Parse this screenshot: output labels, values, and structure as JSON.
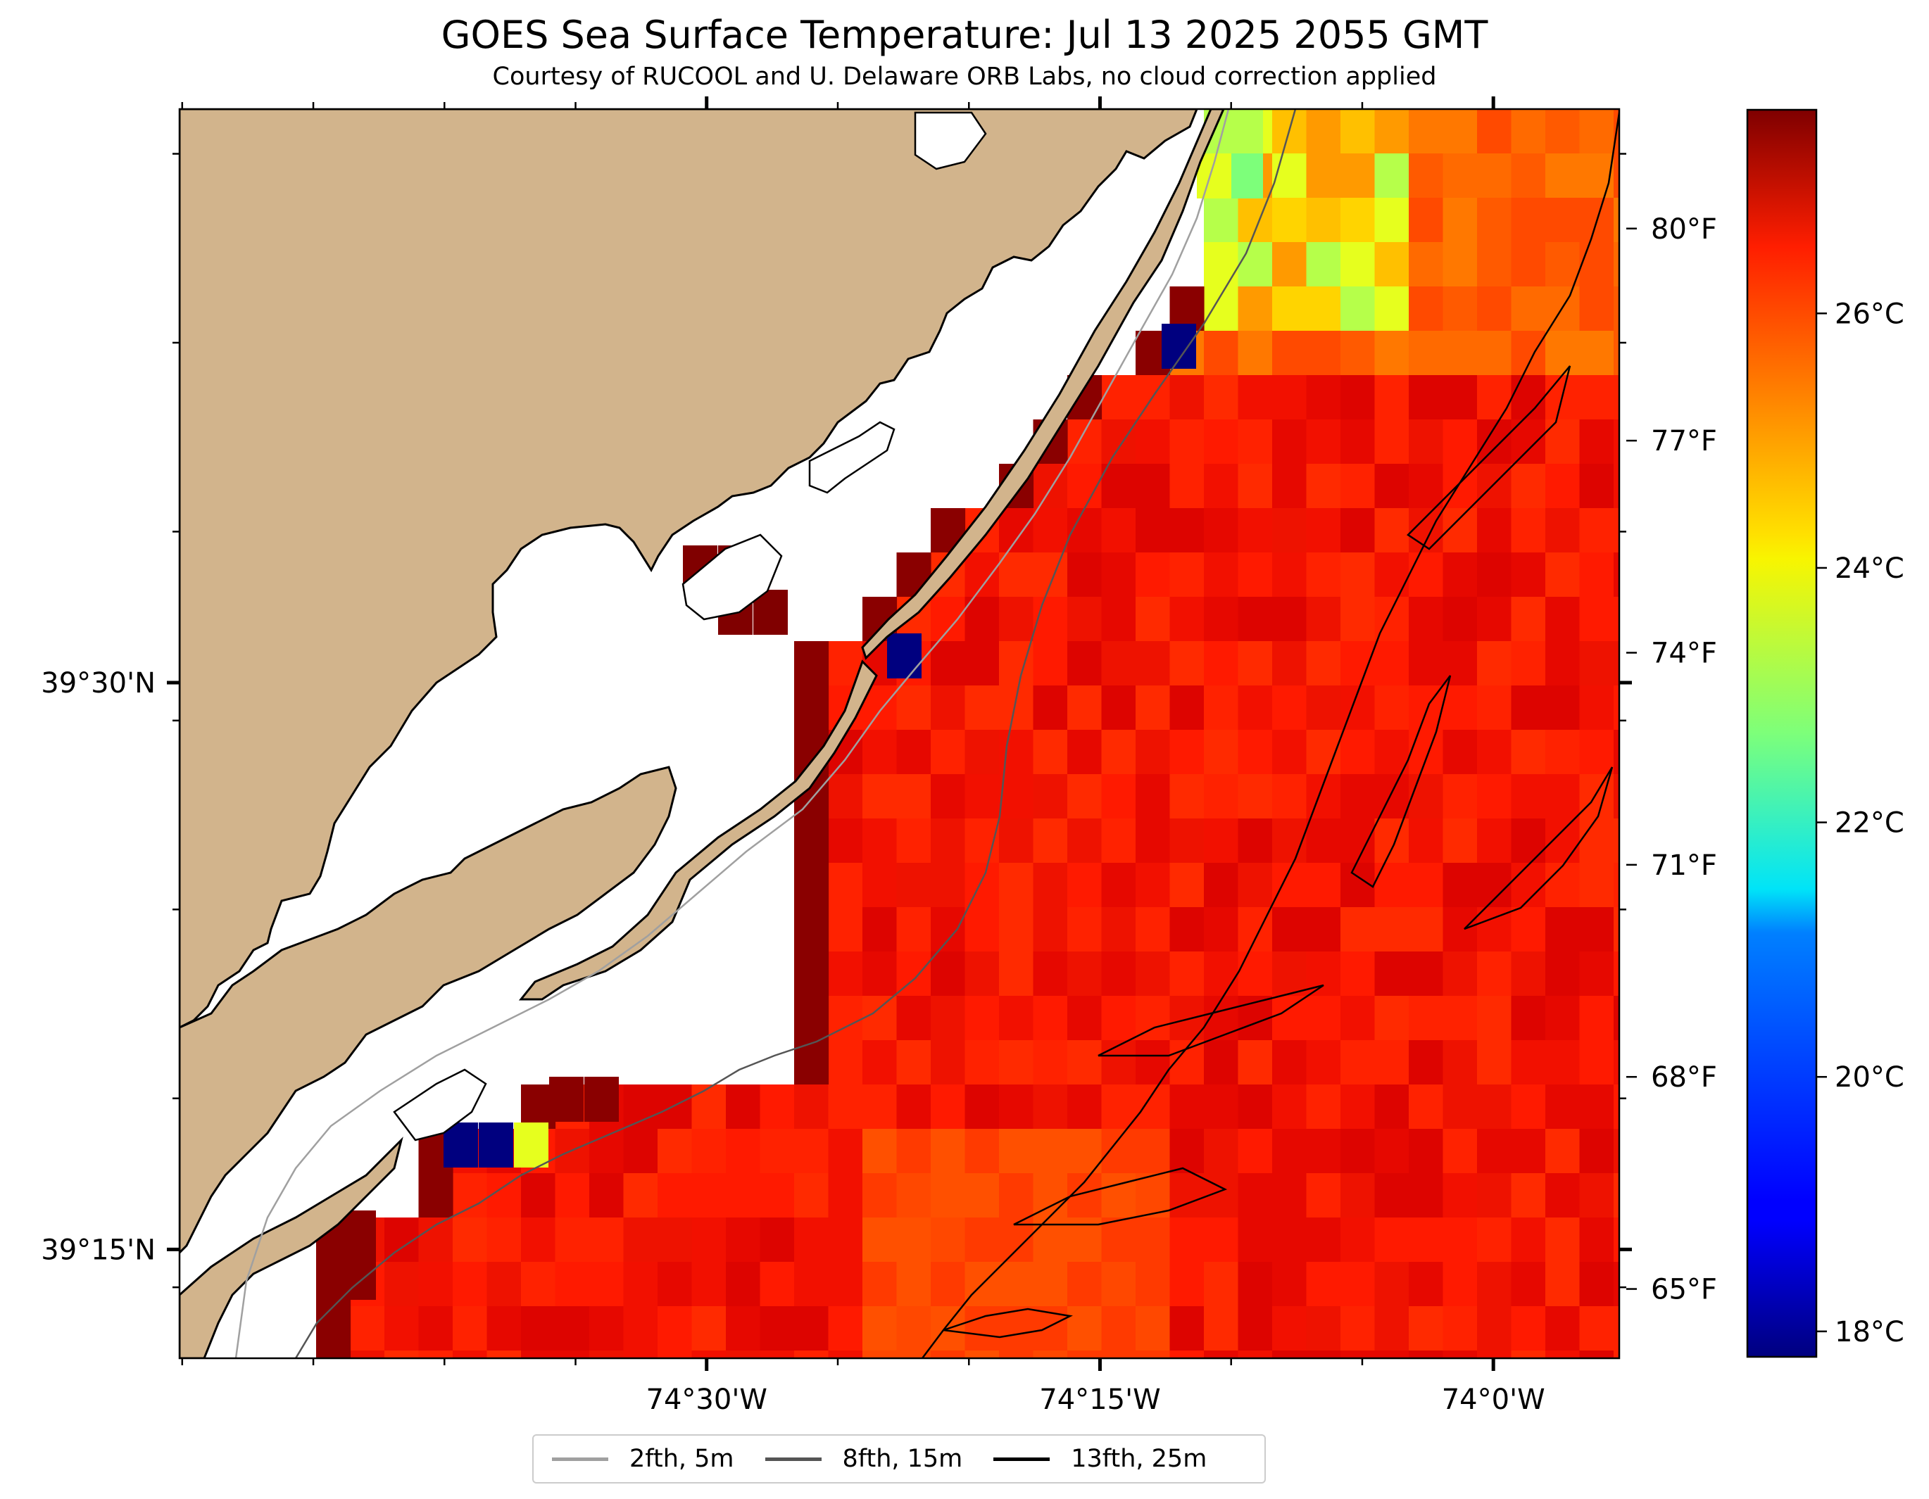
{
  "title": "GOES Sea Surface Temperature: Jul 13 2025 2055 GMT",
  "subtitle": "Courtesy of RUCOOL and U. Delaware ORB Labs, no cloud correction applied",
  "map": {
    "lon_ticks": [
      {
        "value": -74.5,
        "label": "74°30'W"
      },
      {
        "value": -74.25,
        "label": "74°15'W"
      },
      {
        "value": -74.0,
        "label": "74°0'W"
      }
    ],
    "lat_ticks": [
      {
        "value": 39.5,
        "label": "39°30'N"
      },
      {
        "value": 39.25,
        "label": "39°15'N"
      }
    ],
    "land_color": "#d2b48c",
    "ocean_color": "#ffffff"
  },
  "colorbar": {
    "colormap": "jet",
    "range_c": [
      17.8,
      27.6
    ],
    "celsius_ticks": [
      {
        "value": 18,
        "label": "18°C"
      },
      {
        "value": 20,
        "label": "20°C"
      },
      {
        "value": 22,
        "label": "22°C"
      },
      {
        "value": 24,
        "label": "24°C"
      },
      {
        "value": 26,
        "label": "26°C"
      }
    ],
    "fahrenheit_ticks": [
      {
        "value": 65,
        "label": "65°F"
      },
      {
        "value": 68,
        "label": "68°F"
      },
      {
        "value": 71,
        "label": "71°F"
      },
      {
        "value": 74,
        "label": "74°F"
      },
      {
        "value": 77,
        "label": "77°F"
      },
      {
        "value": 80,
        "label": "80°F"
      }
    ]
  },
  "legend": [
    {
      "label": "2fth, 5m",
      "color": "#a0a0a0"
    },
    {
      "label": "8fth, 15m",
      "color": "#555555"
    },
    {
      "label": "13fth, 25m",
      "color": "#000000"
    }
  ]
}
